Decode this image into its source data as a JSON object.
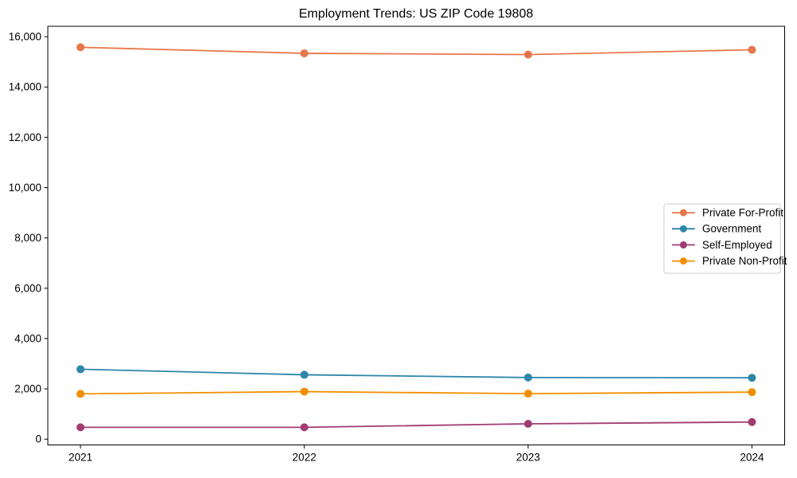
{
  "chart_data": {
    "type": "line",
    "title": "Employment Trends: US ZIP Code 19808",
    "xlabel": "",
    "ylabel": "",
    "categories": [
      "2021",
      "2022",
      "2023",
      "2024"
    ],
    "series": [
      {
        "name": "Private For-Profit",
        "color": "#E8764B",
        "values": [
          15580,
          15340,
          15290,
          15480
        ]
      },
      {
        "name": "Government",
        "color": "#2E86AB",
        "values": [
          2780,
          2560,
          2450,
          2440
        ]
      },
      {
        "name": "Self-Employed",
        "color": "#A23B72",
        "values": [
          470,
          470,
          610,
          680
        ]
      },
      {
        "name": "Private Non-Profit",
        "color": "#F18F01",
        "values": [
          1800,
          1890,
          1810,
          1870
        ]
      }
    ],
    "yticks": [
      0,
      2000,
      4000,
      6000,
      8000,
      10000,
      12000,
      14000,
      16000
    ],
    "ytick_labels": [
      "0",
      "2,000",
      "4,000",
      "6,000",
      "8,000",
      "10,000",
      "12,000",
      "14,000",
      "16,000"
    ],
    "ylim": [
      -230,
      16415
    ],
    "xlim": [
      -0.146,
      3.146
    ],
    "grid": false,
    "marker": "circle",
    "legend_position": "right",
    "axis_color": "#000000",
    "background_color": "#ffffff",
    "legend_border_color": "#cccccc"
  }
}
